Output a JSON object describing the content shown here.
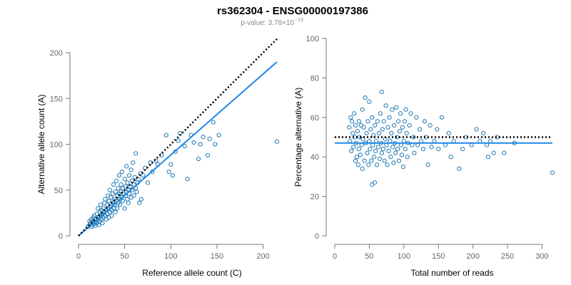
{
  "figure": {
    "title": "rs362304 - ENSG00000197386",
    "subtitle_prefix": "p-value: 3.78×10",
    "subtitle_exp": "−13",
    "colors": {
      "points": "#1f78b4",
      "fit": "#1e88e5",
      "reference": "#000000",
      "axis": "#777777"
    }
  },
  "chart_data": [
    {
      "type": "scatter",
      "xlabel": "Reference allele count (C)",
      "ylabel": "Alternative allele count (A)",
      "xlim": [
        0,
        215
      ],
      "ylim": [
        0,
        200
      ],
      "xticks": [
        0,
        50,
        100,
        150,
        200
      ],
      "yticks": [
        0,
        50,
        100,
        150,
        200
      ],
      "grid": false,
      "points": [
        [
          10,
          10
        ],
        [
          12,
          12
        ],
        [
          12,
          16
        ],
        [
          13,
          14
        ],
        [
          14,
          10
        ],
        [
          14,
          18
        ],
        [
          15,
          12
        ],
        [
          15,
          14
        ],
        [
          16,
          16
        ],
        [
          16,
          20
        ],
        [
          17,
          13
        ],
        [
          17,
          22
        ],
        [
          18,
          15
        ],
        [
          18,
          11
        ],
        [
          19,
          18
        ],
        [
          20,
          14
        ],
        [
          20,
          24
        ],
        [
          21,
          17
        ],
        [
          21,
          30
        ],
        [
          22,
          12
        ],
        [
          22,
          20
        ],
        [
          23,
          26
        ],
        [
          23,
          16
        ],
        [
          24,
          22
        ],
        [
          24,
          34
        ],
        [
          25,
          18
        ],
        [
          25,
          28
        ],
        [
          26,
          24
        ],
        [
          26,
          14
        ],
        [
          27,
          30
        ],
        [
          27,
          20
        ],
        [
          28,
          36
        ],
        [
          28,
          26
        ],
        [
          29,
          22
        ],
        [
          29,
          40
        ],
        [
          30,
          28
        ],
        [
          30,
          18
        ],
        [
          31,
          34
        ],
        [
          31,
          24
        ],
        [
          32,
          44
        ],
        [
          32,
          30
        ],
        [
          33,
          20
        ],
        [
          33,
          38
        ],
        [
          34,
          26
        ],
        [
          34,
          50
        ],
        [
          35,
          32
        ],
        [
          35,
          42
        ],
        [
          36,
          28
        ],
        [
          36,
          22
        ],
        [
          37,
          46
        ],
        [
          37,
          36
        ],
        [
          38,
          30
        ],
        [
          38,
          56
        ],
        [
          39,
          40
        ],
        [
          39,
          34
        ],
        [
          40,
          26
        ],
        [
          40,
          48
        ],
        [
          41,
          38
        ],
        [
          41,
          60
        ],
        [
          42,
          44
        ],
        [
          42,
          30
        ],
        [
          43,
          52
        ],
        [
          43,
          36
        ],
        [
          44,
          46
        ],
        [
          44,
          66
        ],
        [
          45,
          40
        ],
        [
          45,
          34
        ],
        [
          46,
          56
        ],
        [
          46,
          48
        ],
        [
          47,
          42
        ],
        [
          47,
          70
        ],
        [
          48,
          38
        ],
        [
          48,
          52
        ],
        [
          49,
          46
        ],
        [
          50,
          62
        ],
        [
          50,
          30
        ],
        [
          51,
          44
        ],
        [
          51,
          54
        ],
        [
          52,
          48
        ],
        [
          52,
          76
        ],
        [
          53,
          40
        ],
        [
          53,
          58
        ],
        [
          54,
          50
        ],
        [
          54,
          36
        ],
        [
          55,
          66
        ],
        [
          55,
          46
        ],
        [
          56,
          54
        ],
        [
          57,
          42
        ],
        [
          57,
          72
        ],
        [
          58,
          60
        ],
        [
          58,
          50
        ],
        [
          59,
          80
        ],
        [
          60,
          56
        ],
        [
          60,
          44
        ],
        [
          61,
          64
        ],
        [
          62,
          52
        ],
        [
          62,
          90
        ],
        [
          63,
          48
        ],
        [
          64,
          58
        ],
        [
          65,
          62
        ],
        [
          66,
          36
        ],
        [
          67,
          68
        ],
        [
          68,
          40
        ],
        [
          70,
          66
        ],
        [
          72,
          74
        ],
        [
          75,
          58
        ],
        [
          78,
          80
        ],
        [
          80,
          70
        ],
        [
          84,
          82
        ],
        [
          86,
          78
        ],
        [
          90,
          88
        ],
        [
          95,
          110
        ],
        [
          98,
          70
        ],
        [
          100,
          78
        ],
        [
          102,
          66
        ],
        [
          105,
          92
        ],
        [
          108,
          104
        ],
        [
          110,
          112
        ],
        [
          115,
          98
        ],
        [
          118,
          62
        ],
        [
          122,
          110
        ],
        [
          125,
          102
        ],
        [
          130,
          84
        ],
        [
          132,
          100
        ],
        [
          135,
          108
        ],
        [
          140,
          88
        ],
        [
          142,
          106
        ],
        [
          146,
          124
        ],
        [
          148,
          100
        ],
        [
          152,
          110
        ],
        [
          215,
          103
        ]
      ],
      "fit_line": {
        "x": [
          0,
          215
        ],
        "y": [
          0,
          190
        ]
      },
      "reference_line": {
        "x": [
          0,
          215
        ],
        "y": [
          0,
          215
        ]
      }
    },
    {
      "type": "scatter",
      "xlabel": "Total number of reads",
      "ylabel": "Percentage alternative (A)",
      "xlim": [
        0,
        315
      ],
      "ylim": [
        0,
        100
      ],
      "xticks": [
        0,
        50,
        100,
        150,
        200,
        250,
        300
      ],
      "yticks": [
        0,
        20,
        40,
        60,
        80,
        100
      ],
      "grid": false,
      "points": [
        [
          21,
          55
        ],
        [
          22,
          48
        ],
        [
          23,
          60
        ],
        [
          24,
          43
        ],
        [
          25,
          58
        ],
        [
          26,
          52
        ],
        [
          27,
          45
        ],
        [
          28,
          62
        ],
        [
          29,
          50
        ],
        [
          30,
          38
        ],
        [
          30,
          56
        ],
        [
          31,
          47
        ],
        [
          32,
          40
        ],
        [
          33,
          53
        ],
        [
          34,
          36
        ],
        [
          35,
          58
        ],
        [
          35,
          44
        ],
        [
          36,
          50
        ],
        [
          37,
          41
        ],
        [
          38,
          56
        ],
        [
          39,
          46
        ],
        [
          40,
          34
        ],
        [
          40,
          64
        ],
        [
          41,
          49
        ],
        [
          42,
          55
        ],
        [
          43,
          38
        ],
        [
          44,
          70
        ],
        [
          45,
          47
        ],
        [
          46,
          52
        ],
        [
          47,
          42
        ],
        [
          48,
          58
        ],
        [
          49,
          36
        ],
        [
          50,
          68
        ],
        [
          50,
          48
        ],
        [
          51,
          44
        ],
        [
          52,
          54
        ],
        [
          53,
          38
        ],
        [
          54,
          60
        ],
        [
          54,
          26
        ],
        [
          55,
          46
        ],
        [
          56,
          51
        ],
        [
          57,
          40
        ],
        [
          58,
          56
        ],
        [
          58,
          27
        ],
        [
          59,
          43
        ],
        [
          60,
          48
        ],
        [
          61,
          36
        ],
        [
          62,
          58
        ],
        [
          63,
          45
        ],
        [
          64,
          52
        ],
        [
          65,
          39
        ],
        [
          66,
          62
        ],
        [
          67,
          47
        ],
        [
          68,
          73
        ],
        [
          68,
          42
        ],
        [
          69,
          54
        ],
        [
          70,
          44
        ],
        [
          71,
          58
        ],
        [
          72,
          38
        ],
        [
          73,
          49
        ],
        [
          74,
          66
        ],
        [
          75,
          46
        ],
        [
          76,
          36
        ],
        [
          77,
          55
        ],
        [
          78,
          43
        ],
        [
          79,
          60
        ],
        [
          80,
          48
        ],
        [
          81,
          40
        ],
        [
          82,
          52
        ],
        [
          83,
          64
        ],
        [
          84,
          45
        ],
        [
          85,
          37
        ],
        [
          86,
          56
        ],
        [
          87,
          47
        ],
        [
          88,
          42
        ],
        [
          89,
          65
        ],
        [
          90,
          50
        ],
        [
          91,
          44
        ],
        [
          92,
          58
        ],
        [
          93,
          38
        ],
        [
          94,
          53
        ],
        [
          95,
          62
        ],
        [
          96,
          46
        ],
        [
          97,
          41
        ],
        [
          98,
          55
        ],
        [
          99,
          35
        ],
        [
          100,
          48
        ],
        [
          101,
          58
        ],
        [
          102,
          44
        ],
        [
          103,
          64
        ],
        [
          104,
          52
        ],
        [
          105,
          40
        ],
        [
          106,
          47
        ],
        [
          108,
          56
        ],
        [
          110,
          62
        ],
        [
          112,
          46
        ],
        [
          114,
          50
        ],
        [
          115,
          42
        ],
        [
          118,
          60
        ],
        [
          120,
          46
        ],
        [
          123,
          54
        ],
        [
          125,
          48
        ],
        [
          128,
          44
        ],
        [
          130,
          58
        ],
        [
          132,
          50
        ],
        [
          135,
          36
        ],
        [
          138,
          56
        ],
        [
          140,
          45
        ],
        [
          144,
          48
        ],
        [
          148,
          54
        ],
        [
          150,
          44
        ],
        [
          155,
          60
        ],
        [
          160,
          46
        ],
        [
          165,
          52
        ],
        [
          168,
          40
        ],
        [
          172,
          48
        ],
        [
          180,
          34
        ],
        [
          185,
          44
        ],
        [
          190,
          50
        ],
        [
          198,
          46
        ],
        [
          205,
          54
        ],
        [
          210,
          48
        ],
        [
          215,
          52
        ],
        [
          220,
          46
        ],
        [
          222,
          40
        ],
        [
          225,
          48
        ],
        [
          230,
          42
        ],
        [
          235,
          50
        ],
        [
          245,
          42
        ],
        [
          260,
          47
        ],
        [
          315,
          32
        ]
      ],
      "fit_line": {
        "x": [
          0,
          315
        ],
        "y": [
          47,
          47
        ]
      },
      "reference_line": {
        "x": [
          0,
          315
        ],
        "y": [
          50,
          50
        ]
      }
    }
  ]
}
